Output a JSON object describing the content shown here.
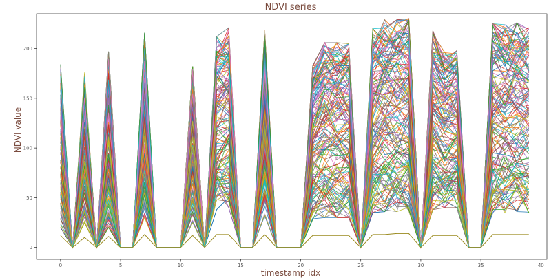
{
  "chart_data": {
    "type": "line",
    "title": "NDVI series",
    "xlabel": "timestamp idx",
    "ylabel": "NDVI value",
    "xlim": [
      -2,
      40.5
    ],
    "ylim": [
      -12,
      235
    ],
    "x_ticks": [
      0,
      5,
      10,
      15,
      20,
      25,
      30,
      35,
      40
    ],
    "y_ticks": [
      0,
      50,
      100,
      150,
      200
    ],
    "grid": false,
    "legend": "none",
    "x": [
      0,
      1,
      2,
      3,
      4,
      5,
      6,
      7,
      8,
      9,
      10,
      11,
      12,
      13,
      14,
      15,
      16,
      17,
      18,
      19,
      20,
      21,
      22,
      23,
      24,
      25,
      26,
      27,
      28,
      29,
      30,
      31,
      32,
      33,
      34,
      35,
      36,
      37,
      38,
      39
    ],
    "series_count_shown": "hundreds of overlapping pixel series",
    "envelope_upper": [
      184,
      0,
      176,
      0,
      197,
      0,
      0,
      216,
      0,
      0,
      0,
      182,
      0,
      212,
      221,
      0,
      0,
      219,
      0,
      0,
      0,
      183,
      206,
      206,
      205,
      0,
      220,
      229,
      229,
      230,
      0,
      218,
      196,
      198,
      0,
      0,
      225,
      224,
      226,
      221
    ],
    "envelope_typical_high": [
      170,
      0,
      150,
      0,
      180,
      0,
      0,
      200,
      0,
      0,
      0,
      170,
      0,
      205,
      210,
      0,
      0,
      205,
      0,
      0,
      0,
      170,
      185,
      185,
      185,
      0,
      215,
      225,
      225,
      225,
      0,
      195,
      185,
      190,
      0,
      0,
      215,
      215,
      215,
      210
    ],
    "envelope_median": [
      80,
      0,
      75,
      0,
      85,
      0,
      0,
      105,
      0,
      0,
      0,
      80,
      0,
      130,
      130,
      0,
      0,
      110,
      0,
      0,
      0,
      110,
      115,
      115,
      115,
      0,
      160,
      165,
      165,
      165,
      0,
      130,
      130,
      140,
      0,
      0,
      150,
      150,
      150,
      150
    ],
    "envelope_typical_low": [
      35,
      0,
      30,
      0,
      35,
      0,
      0,
      40,
      0,
      0,
      0,
      35,
      0,
      50,
      55,
      0,
      0,
      45,
      0,
      0,
      0,
      50,
      60,
      60,
      60,
      0,
      75,
      80,
      80,
      80,
      0,
      70,
      70,
      75,
      0,
      0,
      70,
      70,
      70,
      65
    ],
    "envelope_lower": [
      20,
      0,
      25,
      0,
      20,
      0,
      0,
      30,
      0,
      0,
      0,
      25,
      0,
      38,
      40,
      0,
      0,
      32,
      0,
      0,
      0,
      28,
      30,
      30,
      30,
      0,
      35,
      36,
      36,
      37,
      0,
      38,
      40,
      40,
      0,
      0,
      35,
      35,
      36,
      35
    ],
    "outlier_series": {
      "values": [
        12,
        0,
        10,
        0,
        11,
        0,
        0,
        13,
        0,
        0,
        0,
        12,
        0,
        13,
        13,
        0,
        0,
        13,
        0,
        0,
        0,
        12,
        12,
        12,
        12,
        0,
        13,
        13,
        14,
        14,
        0,
        12,
        12,
        12,
        0,
        0,
        13,
        13,
        13,
        13
      ],
      "color": "#9a8a1e"
    },
    "colors": [
      "#1f77b4",
      "#ff7f0e",
      "#2ca02c",
      "#d62728",
      "#9467bd",
      "#8c564b",
      "#e377c2",
      "#7f7f7f",
      "#bcbd22",
      "#17becf"
    ],
    "title_color": "#7a4b3e"
  }
}
